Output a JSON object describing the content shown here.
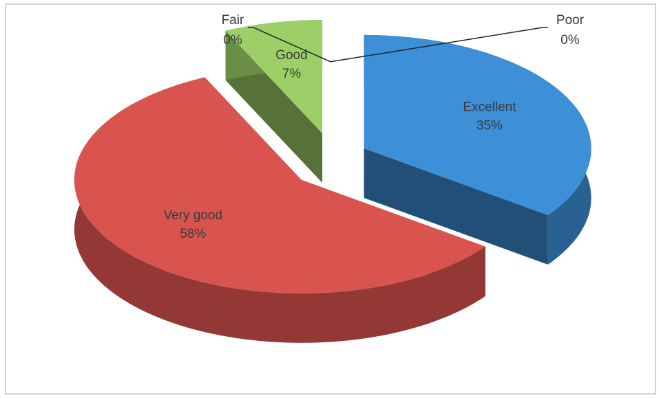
{
  "chart_data": {
    "type": "pie",
    "categories": [
      "Excellent",
      "Very good",
      "Good",
      "Fair",
      "Poor"
    ],
    "values": [
      35,
      58,
      7,
      0,
      0
    ],
    "value_labels": [
      "35%",
      "58%",
      "7%",
      "0%",
      "0%"
    ],
    "colors": [
      "#3d8fd8",
      "#d9534f",
      "#9ccf68",
      "#8064a2",
      "#f79646"
    ]
  }
}
